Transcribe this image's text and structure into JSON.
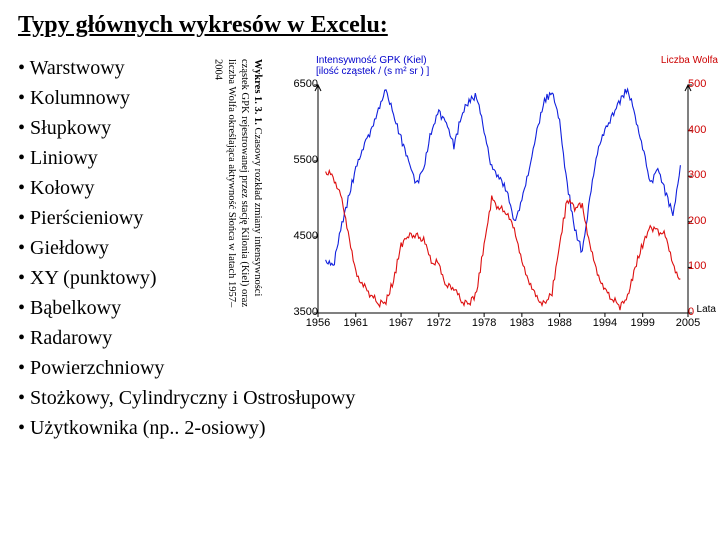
{
  "title": "Typy głównych wykresów w Excelu:",
  "bullets": [
    "Warstwowy",
    "Kolumnowy",
    "Słupkowy",
    "Liniowy",
    "Kołowy",
    "Pierścieniowy",
    "Giełdowy",
    "XY (punktowy)",
    "Bąbelkowy",
    "Radarowy",
    "Powierzchniowy",
    "Stożkowy, Cylindryczny i Ostrosłupowy",
    "Użytkownika  (np.. 2-osiowy)"
  ],
  "chart": {
    "caption_bold": "Wykres 1. 3. 1.",
    "caption_rest": " Czasowy rozkład zmiany intensywności cząstek GPK rejestrowanej przez stację Kilonia (Kiel) oraz liczba Wolfa określająca aktywność Słońca w latach 1957–2004",
    "legend_left_1": "Intensywność GPK (Kiel)",
    "legend_left_2": "[ilość cząstek / (s m² sr ) ]",
    "legend_right": "Liczba Wolfa",
    "x_axis_label": "Lata",
    "y_left": {
      "min": 3500,
      "max": 6500,
      "ticks": [
        3500,
        4500,
        5500,
        6500
      ]
    },
    "y_right": {
      "min": 0,
      "max": 500,
      "ticks": [
        0,
        100,
        200,
        300,
        400,
        500
      ]
    },
    "x_ticks": [
      1956,
      1961,
      1967,
      1972,
      1978,
      1983,
      1988,
      1994,
      1999,
      2005
    ],
    "colors": {
      "blue": "#1020dd",
      "red": "#dd1010",
      "axis": "#000000",
      "bg": "#ffffff"
    },
    "blue_series": [
      [
        1957,
        4200
      ],
      [
        1958,
        4100
      ],
      [
        1959,
        4600
      ],
      [
        1960,
        5000
      ],
      [
        1961,
        5400
      ],
      [
        1962,
        5700
      ],
      [
        1963,
        5900
      ],
      [
        1964,
        6200
      ],
      [
        1965,
        6450
      ],
      [
        1966,
        6100
      ],
      [
        1967,
        5800
      ],
      [
        1968,
        5500
      ],
      [
        1969,
        5200
      ],
      [
        1970,
        5400
      ],
      [
        1971,
        5900
      ],
      [
        1972,
        6150
      ],
      [
        1973,
        6000
      ],
      [
        1974,
        5700
      ],
      [
        1975,
        6100
      ],
      [
        1976,
        6300
      ],
      [
        1977,
        6350
      ],
      [
        1978,
        5900
      ],
      [
        1979,
        5400
      ],
      [
        1980,
        5300
      ],
      [
        1981,
        5100
      ],
      [
        1982,
        4700
      ],
      [
        1983,
        5000
      ],
      [
        1984,
        5400
      ],
      [
        1985,
        5900
      ],
      [
        1986,
        6300
      ],
      [
        1987,
        6400
      ],
      [
        1988,
        6000
      ],
      [
        1989,
        5200
      ],
      [
        1990,
        4600
      ],
      [
        1991,
        4300
      ],
      [
        1992,
        5000
      ],
      [
        1993,
        5600
      ],
      [
        1994,
        5900
      ],
      [
        1995,
        6100
      ],
      [
        1996,
        6300
      ],
      [
        1997,
        6450
      ],
      [
        1998,
        6100
      ],
      [
        1999,
        5700
      ],
      [
        2000,
        5200
      ],
      [
        2001,
        5400
      ],
      [
        2002,
        5100
      ],
      [
        2003,
        4800
      ],
      [
        2004,
        5400
      ]
    ],
    "red_series": [
      [
        1957,
        310
      ],
      [
        1958,
        300
      ],
      [
        1959,
        260
      ],
      [
        1960,
        180
      ],
      [
        1961,
        90
      ],
      [
        1962,
        60
      ],
      [
        1963,
        40
      ],
      [
        1964,
        20
      ],
      [
        1965,
        25
      ],
      [
        1966,
        70
      ],
      [
        1967,
        150
      ],
      [
        1968,
        170
      ],
      [
        1969,
        170
      ],
      [
        1970,
        160
      ],
      [
        1971,
        110
      ],
      [
        1972,
        110
      ],
      [
        1973,
        60
      ],
      [
        1974,
        55
      ],
      [
        1975,
        25
      ],
      [
        1976,
        20
      ],
      [
        1977,
        45
      ],
      [
        1978,
        150
      ],
      [
        1979,
        250
      ],
      [
        1980,
        230
      ],
      [
        1981,
        220
      ],
      [
        1982,
        180
      ],
      [
        1983,
        110
      ],
      [
        1984,
        70
      ],
      [
        1985,
        30
      ],
      [
        1986,
        20
      ],
      [
        1987,
        45
      ],
      [
        1988,
        150
      ],
      [
        1989,
        250
      ],
      [
        1990,
        230
      ],
      [
        1991,
        240
      ],
      [
        1992,
        150
      ],
      [
        1993,
        90
      ],
      [
        1994,
        50
      ],
      [
        1995,
        30
      ],
      [
        1996,
        15
      ],
      [
        1997,
        35
      ],
      [
        1998,
        100
      ],
      [
        1999,
        150
      ],
      [
        2000,
        190
      ],
      [
        2001,
        180
      ],
      [
        2002,
        170
      ],
      [
        2003,
        110
      ],
      [
        2004,
        70
      ]
    ]
  }
}
